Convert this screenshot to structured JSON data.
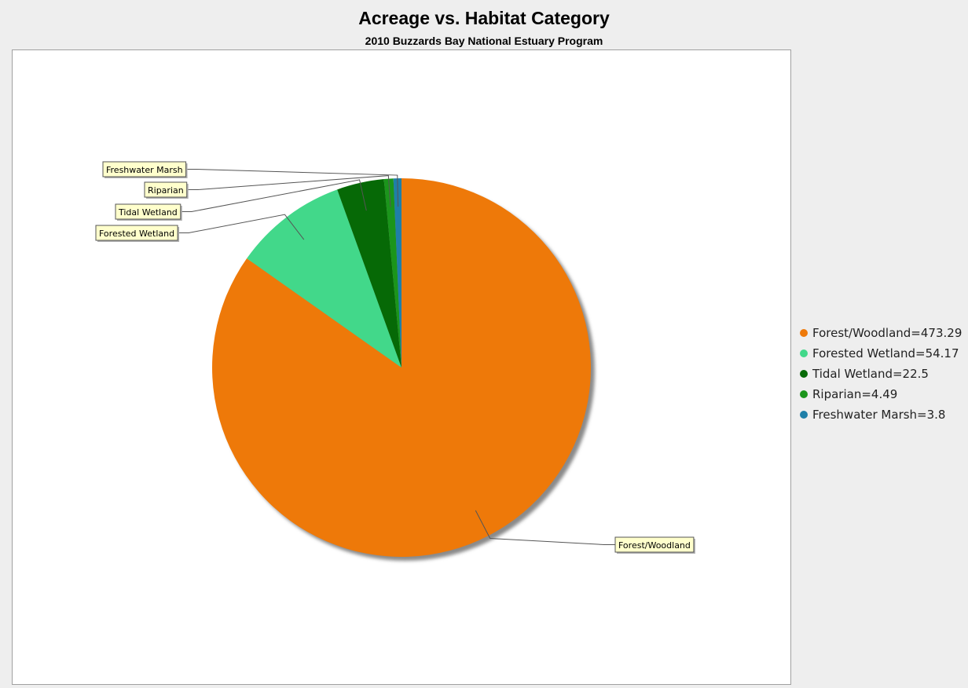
{
  "chart_data": {
    "type": "pie",
    "title": "Acreage vs. Habitat Category",
    "subtitle": "2010 Buzzards Bay National Estuary Program",
    "slices": [
      {
        "label": "Forest/Woodland",
        "value": 473.29,
        "color": "#ee7909",
        "legend": "Forest/Woodland=473.29"
      },
      {
        "label": "Forested Wetland",
        "value": 54.17,
        "color": "#42d88a",
        "legend": "Forested Wetland=54.17"
      },
      {
        "label": "Tidal Wetland",
        "value": 22.5,
        "color": "#066906",
        "legend": "Tidal Wetland=22.5"
      },
      {
        "label": "Riparian",
        "value": 4.49,
        "color": "#1b951b",
        "legend": "Riparian=4.49"
      },
      {
        "label": "Freshwater Marsh",
        "value": 3.8,
        "color": "#1f7fa8",
        "legend": "Freshwater Marsh=3.8"
      }
    ],
    "legend_position": "right",
    "slice_order": "clockwise from top"
  }
}
